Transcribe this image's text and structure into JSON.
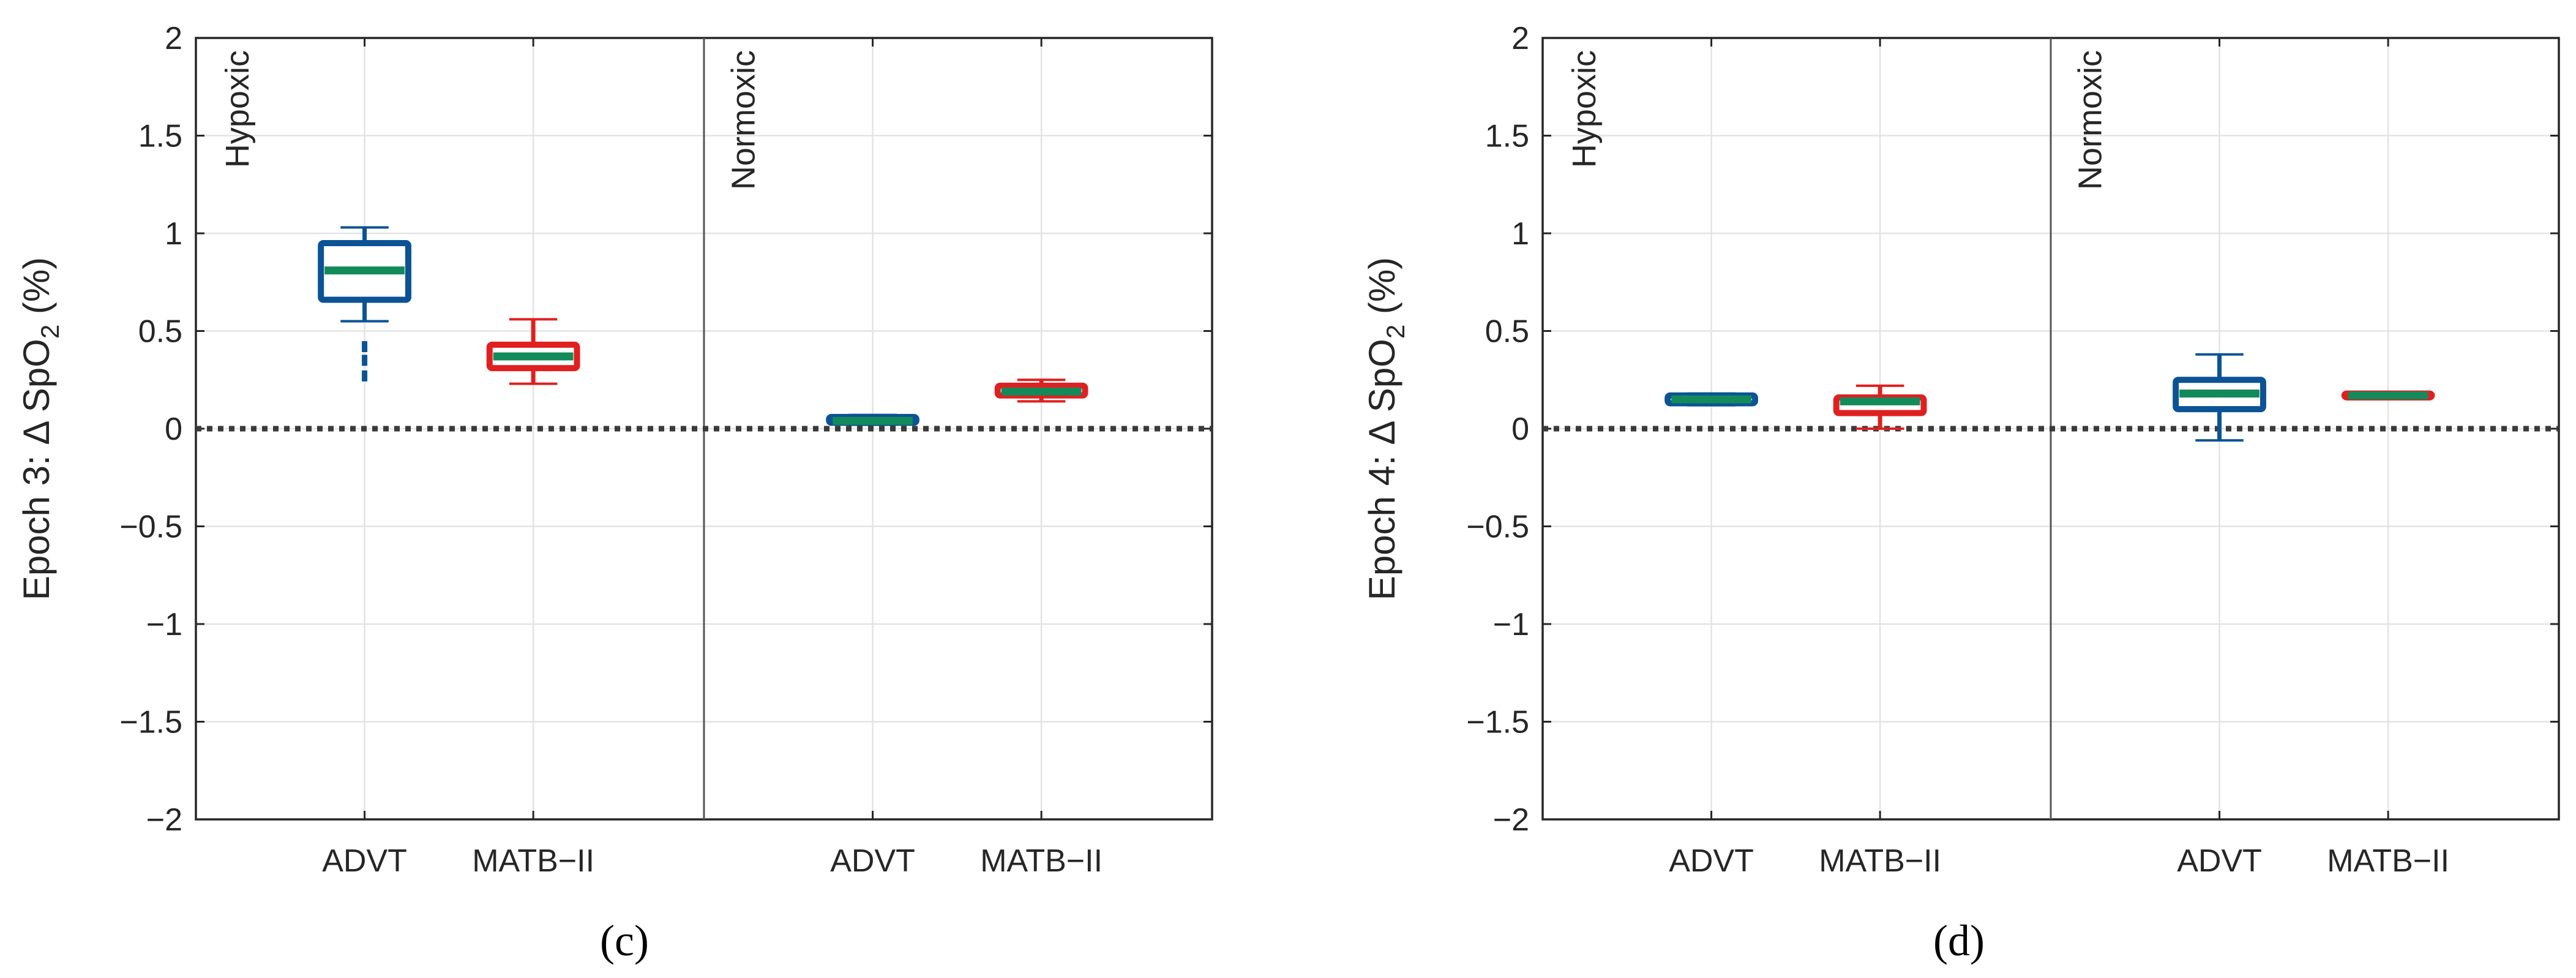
{
  "colors": {
    "advt": "#0b5394",
    "matb": "#e02020",
    "median": "#138a5a",
    "axis": "#262626",
    "grid": "#e3e3e3",
    "zero": "#3a3a3a"
  },
  "chart_data": [
    {
      "type": "boxplot",
      "panel_label": "(c)",
      "ylabel_prefix": "Epoch 3: Δ SpO",
      "ylabel_sub": "2",
      "ylabel_suffix": " (%)",
      "ylim": [
        -2,
        2
      ],
      "yticks": [
        "2",
        "1.5",
        "1",
        "0.5",
        "0",
        "−0.5",
        "−1",
        "−1.5",
        "−2"
      ],
      "grid": true,
      "reference_line": 0,
      "conditions": [
        "Hypoxic",
        "Normoxic"
      ],
      "categories": [
        "ADVT",
        "MATB−II",
        "ADVT",
        "MATB−II"
      ],
      "boxes": [
        {
          "condition": "Hypoxic",
          "group": "ADVT",
          "min": 0.55,
          "q1": 0.66,
          "median": 0.81,
          "q3": 0.95,
          "max": 1.03,
          "outliers": [
            0.27,
            0.35,
            0.42
          ]
        },
        {
          "condition": "Hypoxic",
          "group": "MATB−II",
          "min": 0.23,
          "q1": 0.31,
          "median": 0.37,
          "q3": 0.43,
          "max": 0.56,
          "outliers": []
        },
        {
          "condition": "Normoxic",
          "group": "ADVT",
          "min": 0.02,
          "q1": 0.03,
          "median": 0.04,
          "q3": 0.06,
          "max": 0.07,
          "outliers": []
        },
        {
          "condition": "Normoxic",
          "group": "MATB−II",
          "min": 0.14,
          "q1": 0.17,
          "median": 0.19,
          "q3": 0.22,
          "max": 0.25,
          "outliers": []
        }
      ]
    },
    {
      "type": "boxplot",
      "panel_label": "(d)",
      "ylabel_prefix": "Epoch 4: Δ SpO",
      "ylabel_sub": "2",
      "ylabel_suffix": " (%)",
      "ylim": [
        -2,
        2
      ],
      "yticks": [
        "2",
        "1.5",
        "1",
        "0.5",
        "0",
        "−0.5",
        "−1",
        "−1.5",
        "−2"
      ],
      "grid": true,
      "reference_line": 0,
      "conditions": [
        "Hypoxic",
        "Normoxic"
      ],
      "categories": [
        "ADVT",
        "MATB−II",
        "ADVT",
        "MATB−II"
      ],
      "boxes": [
        {
          "condition": "Hypoxic",
          "group": "ADVT",
          "min": 0.12,
          "q1": 0.13,
          "median": 0.15,
          "q3": 0.17,
          "max": 0.18,
          "outliers": []
        },
        {
          "condition": "Hypoxic",
          "group": "MATB−II",
          "min": 0.0,
          "q1": 0.08,
          "median": 0.14,
          "q3": 0.16,
          "max": 0.22,
          "outliers": []
        },
        {
          "condition": "Normoxic",
          "group": "ADVT",
          "min": -0.06,
          "q1": 0.1,
          "median": 0.18,
          "q3": 0.25,
          "max": 0.38,
          "outliers": []
        },
        {
          "condition": "Normoxic",
          "group": "MATB−II",
          "min": 0.16,
          "q1": 0.16,
          "median": 0.17,
          "q3": 0.18,
          "max": 0.18,
          "outliers": []
        }
      ]
    }
  ]
}
